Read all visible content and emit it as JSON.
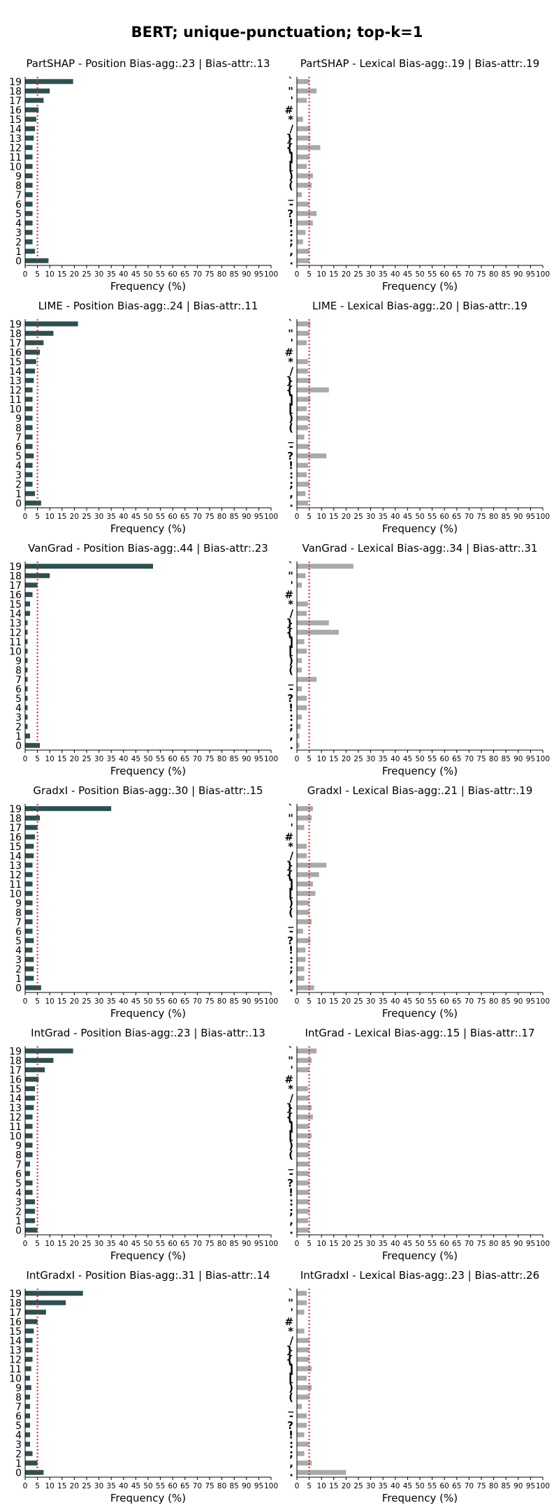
{
  "figure_title": "BERT; unique-punctuation; top-k=1",
  "colors": {
    "position_bar": "#2f4f4f",
    "lexical_bar": "#a9a9a9",
    "reference_line": "#d62728"
  },
  "x_ticks": [
    "0",
    "5",
    "10",
    "15",
    "20",
    "25",
    "30",
    "35",
    "40",
    "45",
    "50",
    "55",
    "60",
    "65",
    "70",
    "75",
    "80",
    "85",
    "90",
    "95",
    "100"
  ],
  "position_categories": [
    "0",
    "1",
    "2",
    "3",
    "4",
    "5",
    "6",
    "7",
    "8",
    "9",
    "10",
    "11",
    "12",
    "13",
    "14",
    "15",
    "16",
    "17",
    "18",
    "19"
  ],
  "lexical_categories": [
    ".",
    ",",
    ";",
    ":",
    "!",
    "?",
    "-",
    "_",
    "(",
    ")",
    "[",
    "]",
    "{",
    "}",
    "/",
    "*",
    "#",
    "'",
    "\"",
    "`"
  ],
  "chart_data": [
    {
      "type": "bar",
      "orientation": "horizontal",
      "title": "PartSHAP - Position Bias-agg:.23 | Bias-attr:.13",
      "xlabel": "Frequency (%)",
      "xlim": [
        0,
        100
      ],
      "reference_line": 5,
      "categories": [
        "0",
        "1",
        "2",
        "3",
        "4",
        "5",
        "6",
        "7",
        "8",
        "9",
        "10",
        "11",
        "12",
        "13",
        "14",
        "15",
        "16",
        "17",
        "18",
        "19"
      ],
      "values": [
        9.5,
        4,
        3,
        3,
        3,
        3,
        3,
        3,
        3,
        3,
        3,
        3,
        3,
        3.5,
        4,
        4.5,
        5.5,
        7.5,
        10,
        19.5
      ]
    },
    {
      "type": "bar",
      "orientation": "horizontal",
      "title": "PartSHAP - Lexical Bias-agg:.19 | Bias-attr:.19",
      "xlabel": "Frequency (%)",
      "xlim": [
        0,
        100
      ],
      "reference_line": 5,
      "categories": [
        ".",
        ",",
        ";",
        ":",
        "!",
        "?",
        "-",
        "_",
        "(",
        ")",
        "[",
        "]",
        "{",
        "}",
        "/",
        "*",
        "#",
        "'",
        "\"",
        "`"
      ],
      "values": [
        5,
        5,
        2.5,
        3.5,
        6.5,
        8,
        5,
        2,
        6,
        6.5,
        4,
        5,
        9.5,
        5.5,
        5.5,
        2.5,
        0,
        4,
        8,
        5
      ]
    },
    {
      "type": "bar",
      "orientation": "horizontal",
      "title": "LIME - Position Bias-agg:.24 | Bias-attr:.11",
      "xlabel": "Frequency (%)",
      "xlim": [
        0,
        100
      ],
      "reference_line": 5,
      "categories": [
        "0",
        "1",
        "2",
        "3",
        "4",
        "5",
        "6",
        "7",
        "8",
        "9",
        "10",
        "11",
        "12",
        "13",
        "14",
        "15",
        "16",
        "17",
        "18",
        "19"
      ],
      "values": [
        6.5,
        4,
        3,
        3,
        3,
        3.5,
        3,
        3,
        3,
        3,
        3,
        3,
        3,
        3.5,
        4,
        4.5,
        6,
        7.5,
        11.5,
        21.5
      ]
    },
    {
      "type": "bar",
      "orientation": "horizontal",
      "title": "LIME - Lexical Bias-agg:.20 | Bias-attr:.19",
      "xlabel": "Frequency (%)",
      "xlim": [
        0,
        100
      ],
      "reference_line": 5,
      "categories": [
        ".",
        ",",
        ";",
        ":",
        "!",
        "?",
        "-",
        "_",
        "(",
        ")",
        "[",
        "]",
        "{",
        "}",
        "/",
        "*",
        "#",
        "'",
        "\"",
        "`"
      ],
      "values": [
        4.5,
        3.5,
        5,
        4,
        4.5,
        12,
        5,
        3,
        4.5,
        5,
        4,
        5.5,
        13,
        5.5,
        4.5,
        4.5,
        0,
        4,
        5,
        5.5
      ]
    },
    {
      "type": "bar",
      "orientation": "horizontal",
      "title": "VanGrad - Position Bias-agg:.44 | Bias-attr:.23",
      "xlabel": "Frequency (%)",
      "xlim": [
        0,
        100
      ],
      "reference_line": 5,
      "categories": [
        "0",
        "1",
        "2",
        "3",
        "4",
        "5",
        "6",
        "7",
        "8",
        "9",
        "10",
        "11",
        "12",
        "13",
        "14",
        "15",
        "16",
        "17",
        "18",
        "19"
      ],
      "values": [
        6,
        2,
        1,
        1,
        1,
        1,
        1,
        1,
        1,
        1,
        1,
        1,
        1,
        1,
        2,
        2,
        3,
        5,
        10,
        52
      ]
    },
    {
      "type": "bar",
      "orientation": "horizontal",
      "title": "VanGrad - Lexical Bias-agg:.34 | Bias-attr:.31",
      "xlabel": "Frequency (%)",
      "xlim": [
        0,
        100
      ],
      "reference_line": 5,
      "categories": [
        ".",
        ",",
        ";",
        ":",
        "!",
        "?",
        "-",
        "_",
        "(",
        ")",
        "[",
        "]",
        "{",
        "}",
        "/",
        "*",
        "#",
        "'",
        "\"",
        "`"
      ],
      "values": [
        1,
        1,
        1.5,
        2,
        4,
        4,
        2,
        8,
        2,
        2,
        4,
        3,
        17,
        13,
        4,
        4.5,
        0,
        2,
        3.5,
        23
      ]
    },
    {
      "type": "bar",
      "orientation": "horizontal",
      "title": "GradxI - Position Bias-agg:.30 | Bias-attr:.15",
      "xlabel": "Frequency (%)",
      "xlim": [
        0,
        100
      ],
      "reference_line": 5,
      "categories": [
        "0",
        "1",
        "2",
        "3",
        "4",
        "5",
        "6",
        "7",
        "8",
        "9",
        "10",
        "11",
        "12",
        "13",
        "14",
        "15",
        "16",
        "17",
        "18",
        "19"
      ],
      "values": [
        6.5,
        3.5,
        3.5,
        3.5,
        3,
        3.5,
        3,
        3,
        3,
        3,
        3,
        3,
        3,
        3,
        3.5,
        3.5,
        4,
        5,
        6,
        35
      ]
    },
    {
      "type": "bar",
      "orientation": "horizontal",
      "title": "GradxI - Lexical Bias-agg:.21 | Bias-attr:.19",
      "xlabel": "Frequency (%)",
      "xlim": [
        0,
        100
      ],
      "reference_line": 5,
      "categories": [
        ".",
        ",",
        ";",
        ":",
        "!",
        "?",
        "-",
        "_",
        "(",
        ")",
        "[",
        "]",
        "{",
        "}",
        "/",
        "*",
        "#",
        "'",
        "\"",
        "`"
      ],
      "values": [
        7,
        3,
        3,
        3.5,
        3.5,
        5.5,
        2.5,
        6,
        5,
        5,
        7.5,
        6.5,
        9,
        12,
        4,
        4,
        0,
        3,
        6,
        6.5
      ]
    },
    {
      "type": "bar",
      "orientation": "horizontal",
      "title": "IntGrad - Position Bias-agg:.23 | Bias-attr:.13",
      "xlabel": "Frequency (%)",
      "xlim": [
        0,
        100
      ],
      "reference_line": 5,
      "categories": [
        "0",
        "1",
        "2",
        "3",
        "4",
        "5",
        "6",
        "7",
        "8",
        "9",
        "10",
        "11",
        "12",
        "13",
        "14",
        "15",
        "16",
        "17",
        "18",
        "19"
      ],
      "values": [
        5,
        4,
        4,
        4,
        3,
        3,
        2,
        2,
        3,
        3,
        3,
        3,
        3,
        3.5,
        4,
        4,
        5.5,
        8,
        11.5,
        19.5
      ]
    },
    {
      "type": "bar",
      "orientation": "horizontal",
      "title": "IntGrad - Lexical Bias-agg:.15 | Bias-attr:.17",
      "xlabel": "Frequency (%)",
      "xlim": [
        0,
        100
      ],
      "reference_line": 5,
      "categories": [
        ".",
        ",",
        ";",
        ":",
        "!",
        "?",
        "-",
        "_",
        "(",
        ")",
        "[",
        "]",
        "{",
        "}",
        "/",
        "*",
        "#",
        "'",
        "\"",
        "`"
      ],
      "values": [
        5,
        4.5,
        5,
        5,
        5,
        5,
        5,
        5,
        5,
        5,
        6,
        5,
        6.5,
        6,
        5,
        4.5,
        0,
        5,
        6,
        8
      ]
    },
    {
      "type": "bar",
      "orientation": "horizontal",
      "title": "IntGradxI - Position Bias-agg:.31 | Bias-attr:.14",
      "xlabel": "Frequency (%)",
      "xlim": [
        0,
        100
      ],
      "reference_line": 5,
      "categories": [
        "0",
        "1",
        "2",
        "3",
        "4",
        "5",
        "6",
        "7",
        "8",
        "9",
        "10",
        "11",
        "12",
        "13",
        "14",
        "15",
        "16",
        "17",
        "18",
        "19"
      ],
      "values": [
        7.5,
        5,
        3,
        2,
        2,
        2,
        2,
        2,
        2,
        2.5,
        2,
        2.5,
        3,
        3,
        3,
        3.5,
        5,
        8.5,
        16.5,
        23.5
      ]
    },
    {
      "type": "bar",
      "orientation": "horizontal",
      "title": "IntGradxI - Lexical Bias-agg:.23 | Bias-attr:.26",
      "xlabel": "Frequency (%)",
      "xlim": [
        0,
        100
      ],
      "reference_line": 5,
      "categories": [
        ".",
        ",",
        ";",
        ":",
        "!",
        "?",
        "-",
        "_",
        "(",
        ")",
        "[",
        "]",
        "{",
        "}",
        "/",
        "*",
        "#",
        "'",
        "\"",
        "`"
      ],
      "values": [
        20,
        6,
        3,
        5,
        3,
        4,
        4,
        2,
        5,
        6,
        4,
        6,
        5,
        5,
        5,
        3,
        0,
        3,
        4,
        4
      ]
    }
  ]
}
